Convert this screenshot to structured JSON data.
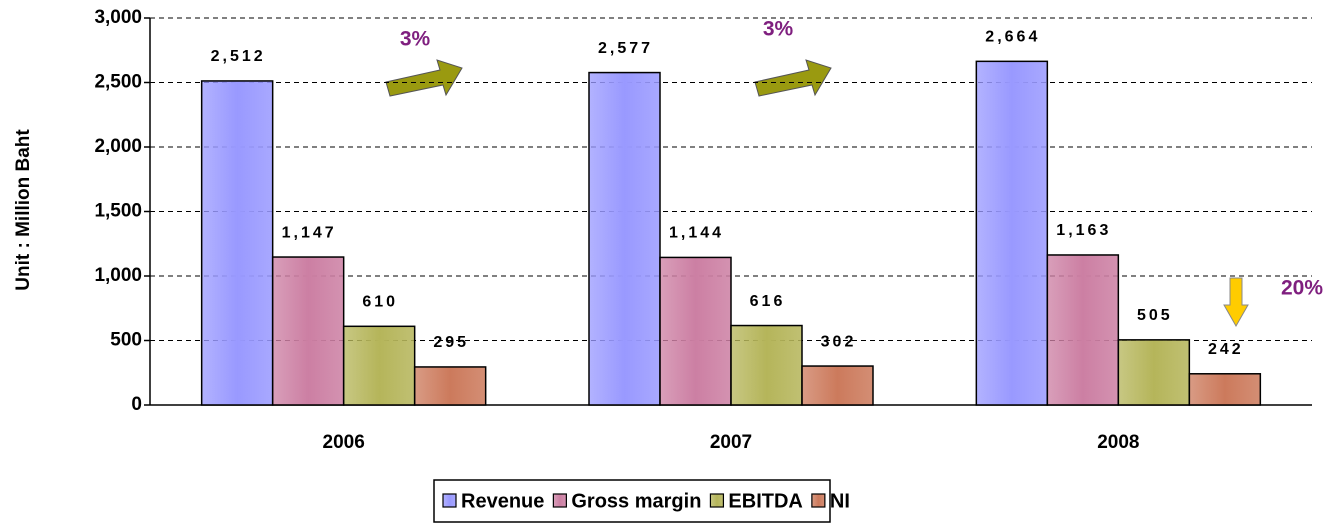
{
  "chart_data": {
    "type": "bar",
    "y_label": "Unit : Million Baht",
    "categories": [
      "2006",
      "2007",
      "2008"
    ],
    "series": [
      {
        "name": "Revenue",
        "color": "#9999ff",
        "values": [
          2512,
          2577,
          2664
        ],
        "value_labels": [
          "2,512",
          "2,577",
          "2,664"
        ]
      },
      {
        "name": "Gross margin",
        "color": "#cc7fa3",
        "values": [
          1147,
          1144,
          1163
        ],
        "value_labels": [
          "1,147",
          "1,144",
          "1,163"
        ]
      },
      {
        "name": "EBITDA",
        "color": "#b5b55a",
        "values": [
          610,
          616,
          505
        ]
      },
      {
        "name": "NI",
        "color": "#cc7a5c",
        "values": [
          295,
          302,
          242
        ]
      }
    ],
    "ylim": [
      0,
      3000
    ],
    "yticks": [
      0,
      500,
      {
        "value": 1000,
        "label": "1,000"
      },
      {
        "value": 1500,
        "label": "1,500"
      },
      {
        "value": 2000,
        "label": "2,000"
      },
      {
        "value": 2500,
        "label": "2,500"
      },
      {
        "value": 3000,
        "label": "3,000"
      }
    ],
    "grid": true,
    "legend": "bottom",
    "annotations": [
      "3%",
      "3%",
      "20%"
    ]
  }
}
